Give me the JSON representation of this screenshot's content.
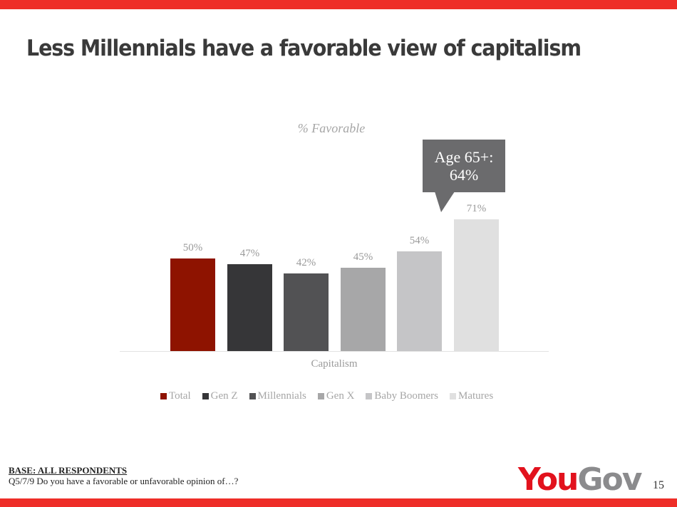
{
  "slide": {
    "title": "Less Millennials have a favorable view of capitalism",
    "page_number": "15",
    "brand": {
      "part1": "You",
      "part2": "Gov",
      "color_primary": "#e2121d",
      "color_secondary": "#8b8b8d"
    },
    "accent_bar_color": "#ee2e28"
  },
  "footer": {
    "base_label": "BASE: ALL RESPONDENTS",
    "question": "Q5/7/9 Do you have a favorable or unfavorable opinion of…?"
  },
  "callout": {
    "line1": "Age 65+:",
    "line2": "64%"
  },
  "chart_data": {
    "type": "bar",
    "title": "% Favorable",
    "categories": [
      "Capitalism"
    ],
    "xlabel": "Capitalism",
    "ylabel": "",
    "ylim": [
      0,
      80
    ],
    "grid": false,
    "legend_position": "bottom",
    "series": [
      {
        "name": "Total",
        "values": [
          50
        ],
        "label": "50%",
        "color": "#8e1300"
      },
      {
        "name": "Gen Z",
        "values": [
          47
        ],
        "label": "47%",
        "color": "#363638"
      },
      {
        "name": "Millennials",
        "values": [
          42
        ],
        "label": "42%",
        "color": "#525254"
      },
      {
        "name": "Gen X",
        "values": [
          45
        ],
        "label": "45%",
        "color": "#a7a7a8"
      },
      {
        "name": "Baby Boomers",
        "values": [
          54
        ],
        "label": "54%",
        "color": "#c5c5c7"
      },
      {
        "name": "Matures",
        "values": [
          71
        ],
        "label": "71%",
        "color": "#e0e0e0"
      }
    ],
    "annotations": [
      {
        "text": "Age 65+: 64%",
        "target_series": "Matures"
      }
    ]
  }
}
